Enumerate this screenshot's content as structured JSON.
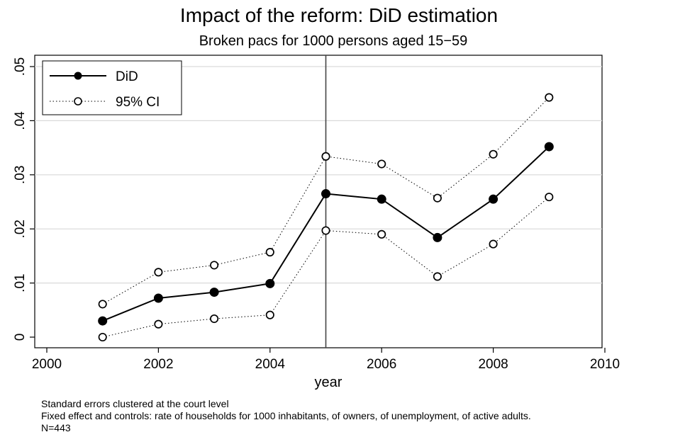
{
  "chart_data": {
    "type": "line",
    "title": "Impact of the reform: DiD estimation",
    "subtitle": "Broken pacs for 1000 persons aged 15−59",
    "xlabel": "year",
    "ylabel": "",
    "xlim": [
      2000,
      2010
    ],
    "ylim": [
      0,
      0.05
    ],
    "xticks": [
      2000,
      2002,
      2004,
      2006,
      2008,
      2010
    ],
    "xtick_labels": [
      "2000",
      "2002",
      "2004",
      "2006",
      "2008",
      "2010"
    ],
    "yticks": [
      0,
      0.01,
      0.02,
      0.03,
      0.04,
      0.05
    ],
    "ytick_labels": [
      "0",
      ".01",
      ".02",
      ".03",
      ".04",
      ".05"
    ],
    "grid": "horizontal",
    "legend_position": "top-left",
    "reference_line_x": 2005,
    "x": [
      2001,
      2002,
      2003,
      2004,
      2005,
      2006,
      2007,
      2008,
      2009
    ],
    "series": [
      {
        "name": "DiD",
        "style": "solid-filled",
        "values": [
          0.003,
          0.0072,
          0.0083,
          0.0099,
          0.0265,
          0.0255,
          0.0184,
          0.0255,
          0.0352
        ]
      },
      {
        "name": "95% CI",
        "style": "dotted-hollow",
        "values": [
          0.0061,
          0.012,
          0.0133,
          0.0157,
          0.0334,
          0.032,
          0.0257,
          0.0338,
          0.0443
        ]
      },
      {
        "name": "",
        "style": "dotted-hollow",
        "values": [
          0.0,
          0.0024,
          0.0034,
          0.0041,
          0.0197,
          0.019,
          0.0112,
          0.0172,
          0.0259
        ]
      }
    ]
  },
  "notes": [
    "Standard errors clustered at the court level",
    "Fixed effect and controls: rate of households for 1000 inhabitants, of owners, of unemployment, of active adults.",
    "N=443"
  ]
}
